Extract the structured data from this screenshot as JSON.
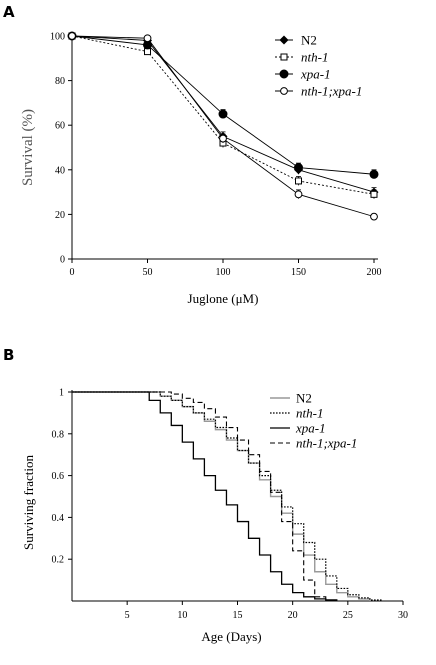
{
  "panel_a_label": "A",
  "panel_b_label": "B",
  "chart_data": [
    {
      "type": "line",
      "xlabel": "Juglone (μM)",
      "ylabel": "Survival (%)",
      "xlim": [
        0,
        200
      ],
      "ylim": [
        0,
        100
      ],
      "xticks": [
        "0",
        "50",
        "100",
        "150",
        "200"
      ],
      "yticks": [
        "0",
        "20",
        "40",
        "60",
        "80",
        "100"
      ],
      "x": [
        0,
        50,
        100,
        150,
        200
      ],
      "legend_position": "top-right",
      "series": [
        {
          "name": "N2",
          "marker": "filled-diamond",
          "line": "solid",
          "values": [
            100,
            98,
            55,
            40,
            30
          ],
          "errors": [
            0,
            1,
            2,
            2,
            2
          ]
        },
        {
          "name": "nth-1",
          "marker": "open-square",
          "line": "dotted",
          "values": [
            100,
            93,
            52,
            35,
            29
          ],
          "errors": [
            0,
            1,
            2,
            2,
            2
          ]
        },
        {
          "name": "xpa-1",
          "marker": "filled-circle",
          "line": "solid",
          "values": [
            100,
            96,
            65,
            41,
            38
          ],
          "errors": [
            0,
            1,
            2,
            2,
            2
          ]
        },
        {
          "name": "nth-1;xpa-1",
          "marker": "open-circle",
          "line": "solid",
          "values": [
            100,
            99,
            54,
            29,
            19
          ],
          "errors": [
            0,
            1,
            2,
            2,
            1
          ]
        }
      ]
    },
    {
      "type": "line",
      "step": true,
      "xlabel": "Age (Days)",
      "ylabel": "Surviving fraction",
      "xlim": [
        0,
        30
      ],
      "ylim": [
        0,
        1
      ],
      "xticks": [
        "5",
        "10",
        "15",
        "20",
        "25",
        "30"
      ],
      "yticks": [
        "0.2",
        "0.4",
        "0.6",
        "0.8",
        "1"
      ],
      "legend_position": "top-right",
      "series": [
        {
          "name": "N2",
          "color": "#999999",
          "line": "solid",
          "x": [
            0,
            8,
            9,
            10,
            11,
            12,
            13,
            14,
            15,
            16,
            17,
            18,
            19,
            20,
            21,
            22,
            23,
            24,
            25,
            26,
            27
          ],
          "y": [
            1,
            0.98,
            0.96,
            0.93,
            0.9,
            0.86,
            0.82,
            0.77,
            0.72,
            0.66,
            0.58,
            0.5,
            0.42,
            0.32,
            0.22,
            0.14,
            0.08,
            0.04,
            0.02,
            0.01,
            0
          ]
        },
        {
          "name": "nth-1",
          "color": "#000000",
          "line": "dotted",
          "x": [
            0,
            8,
            9,
            10,
            11,
            12,
            13,
            14,
            15,
            16,
            17,
            18,
            19,
            20,
            21,
            22,
            23,
            24,
            25,
            26,
            27,
            28
          ],
          "y": [
            1,
            0.98,
            0.96,
            0.93,
            0.9,
            0.87,
            0.83,
            0.78,
            0.72,
            0.66,
            0.6,
            0.53,
            0.45,
            0.37,
            0.28,
            0.2,
            0.12,
            0.06,
            0.03,
            0.015,
            0.005,
            0
          ]
        },
        {
          "name": "xpa-1",
          "color": "#000000",
          "line": "solid",
          "x": [
            0,
            7,
            8,
            9,
            10,
            11,
            12,
            13,
            14,
            15,
            16,
            17,
            18,
            19,
            20,
            21,
            22,
            23,
            24
          ],
          "y": [
            1,
            0.96,
            0.9,
            0.84,
            0.76,
            0.68,
            0.6,
            0.53,
            0.46,
            0.38,
            0.3,
            0.22,
            0.14,
            0.08,
            0.04,
            0.02,
            0.01,
            0.005,
            0
          ]
        },
        {
          "name": "nth-1;xpa-1",
          "color": "#000000",
          "line": "dashed",
          "x": [
            0,
            9,
            10,
            11,
            12,
            13,
            14,
            15,
            16,
            17,
            18,
            19,
            20,
            21,
            22,
            23
          ],
          "y": [
            1,
            0.99,
            0.97,
            0.95,
            0.92,
            0.88,
            0.83,
            0.77,
            0.7,
            0.62,
            0.52,
            0.38,
            0.24,
            0.1,
            0.02,
            0
          ]
        }
      ]
    }
  ]
}
